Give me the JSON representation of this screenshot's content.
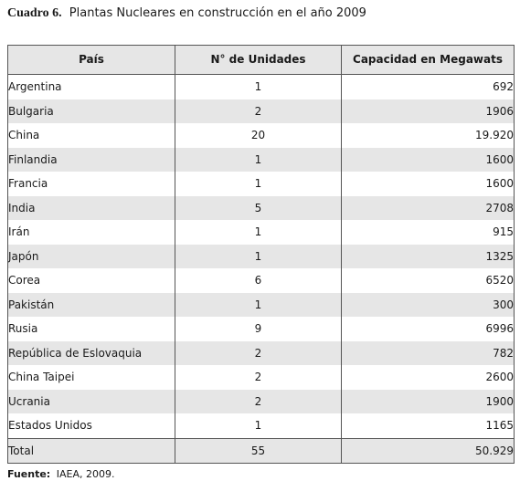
{
  "caption": {
    "label": "Cuadro 6.",
    "title": "Plantas Nucleares en construcción en el año 2009"
  },
  "table": {
    "headers": [
      "País",
      "N° de Unidades",
      "Capacidad en Megawats"
    ],
    "rows": [
      {
        "country": "Argentina",
        "units": "1",
        "capacity": "692"
      },
      {
        "country": "Bulgaria",
        "units": "2",
        "capacity": "1906"
      },
      {
        "country": "China",
        "units": "20",
        "capacity": "19.920"
      },
      {
        "country": "Finlandia",
        "units": "1",
        "capacity": "1600"
      },
      {
        "country": "Francia",
        "units": "1",
        "capacity": "1600"
      },
      {
        "country": "India",
        "units": "5",
        "capacity": "2708"
      },
      {
        "country": "Irán",
        "units": "1",
        "capacity": "915"
      },
      {
        "country": "Japón",
        "units": "1",
        "capacity": "1325"
      },
      {
        "country": "Corea",
        "units": "6",
        "capacity": "6520"
      },
      {
        "country": "Pakistán",
        "units": "1",
        "capacity": "300"
      },
      {
        "country": "Rusia",
        "units": "9",
        "capacity": "6996"
      },
      {
        "country": "República de Eslovaquia",
        "units": "2",
        "capacity": "782"
      },
      {
        "country": "China Taipei",
        "units": "2",
        "capacity": "2600"
      },
      {
        "country": "Ucrania",
        "units": "2",
        "capacity": "1900"
      },
      {
        "country": "Estados Unidos",
        "units": "1",
        "capacity": "1165"
      }
    ],
    "total": {
      "country": "Total",
      "units": "55",
      "capacity": "50.929"
    },
    "shade_color": "#e6e6e6"
  },
  "source": {
    "label": "Fuente:",
    "text": "IAEA, 2009."
  }
}
